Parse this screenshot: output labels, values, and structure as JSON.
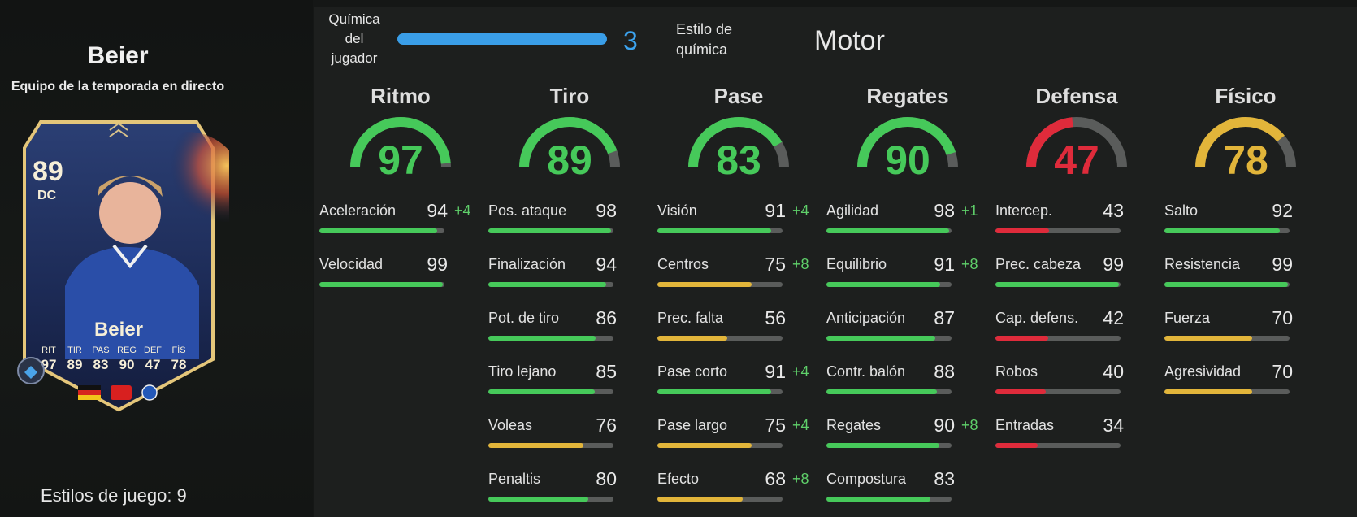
{
  "player": {
    "name": "Beier",
    "team": "Equipo de la temporada en directo",
    "playstyles_label": "Estilos de juego: 9"
  },
  "card": {
    "rating": "89",
    "position": "DC",
    "name": "Beier",
    "stats": [
      {
        "label": "RIT",
        "value": "97"
      },
      {
        "label": "TIR",
        "value": "89"
      },
      {
        "label": "PAS",
        "value": "83"
      },
      {
        "label": "REG",
        "value": "90"
      },
      {
        "label": "DEF",
        "value": "47"
      },
      {
        "label": "FÍS",
        "value": "78"
      }
    ]
  },
  "chemistry": {
    "label_lines": [
      "Química",
      "del",
      "jugador"
    ],
    "value": "3",
    "fill_fraction": 1.0,
    "style_label_lines": [
      "Estilo de",
      "química"
    ],
    "style_value": "Motor"
  },
  "colors": {
    "green": "#46c95a",
    "yellow": "#e2b53a",
    "red": "#df2b3b",
    "blue": "#3a9ee8",
    "track": "#5a5c5b"
  },
  "categories": [
    {
      "title": "Ritmo",
      "value": "97",
      "stats": [
        {
          "label": "Aceleración",
          "value": "94",
          "bonus": "+4"
        },
        {
          "label": "Velocidad",
          "value": "99",
          "bonus": ""
        }
      ]
    },
    {
      "title": "Tiro",
      "value": "89",
      "stats": [
        {
          "label": "Pos. ataque",
          "value": "98",
          "bonus": ""
        },
        {
          "label": "Finalización",
          "value": "94",
          "bonus": ""
        },
        {
          "label": "Pot. de tiro",
          "value": "86",
          "bonus": ""
        },
        {
          "label": "Tiro lejano",
          "value": "85",
          "bonus": ""
        },
        {
          "label": "Voleas",
          "value": "76",
          "bonus": ""
        },
        {
          "label": "Penaltis",
          "value": "80",
          "bonus": ""
        }
      ]
    },
    {
      "title": "Pase",
      "value": "83",
      "stats": [
        {
          "label": "Visión",
          "value": "91",
          "bonus": "+4"
        },
        {
          "label": "Centros",
          "value": "75",
          "bonus": "+8"
        },
        {
          "label": "Prec. falta",
          "value": "56",
          "bonus": ""
        },
        {
          "label": "Pase corto",
          "value": "91",
          "bonus": "+4"
        },
        {
          "label": "Pase largo",
          "value": "75",
          "bonus": "+4"
        },
        {
          "label": "Efecto",
          "value": "68",
          "bonus": "+8"
        }
      ]
    },
    {
      "title": "Regates",
      "value": "90",
      "stats": [
        {
          "label": "Agilidad",
          "value": "98",
          "bonus": "+1"
        },
        {
          "label": "Equilibrio",
          "value": "91",
          "bonus": "+8"
        },
        {
          "label": "Anticipación",
          "value": "87",
          "bonus": ""
        },
        {
          "label": "Contr. balón",
          "value": "88",
          "bonus": ""
        },
        {
          "label": "Regates",
          "value": "90",
          "bonus": "+8"
        },
        {
          "label": "Compostura",
          "value": "83",
          "bonus": ""
        }
      ]
    },
    {
      "title": "Defensa",
      "value": "47",
      "stats": [
        {
          "label": "Intercep.",
          "value": "43",
          "bonus": ""
        },
        {
          "label": "Prec. cabeza",
          "value": "99",
          "bonus": ""
        },
        {
          "label": "Cap. defens.",
          "value": "42",
          "bonus": ""
        },
        {
          "label": "Robos",
          "value": "40",
          "bonus": ""
        },
        {
          "label": "Entradas",
          "value": "34",
          "bonus": ""
        }
      ]
    },
    {
      "title": "Físico",
      "value": "78",
      "stats": [
        {
          "label": "Salto",
          "value": "92",
          "bonus": ""
        },
        {
          "label": "Resistencia",
          "value": "99",
          "bonus": ""
        },
        {
          "label": "Fuerza",
          "value": "70",
          "bonus": ""
        },
        {
          "label": "Agresividad",
          "value": "70",
          "bonus": ""
        }
      ]
    }
  ]
}
